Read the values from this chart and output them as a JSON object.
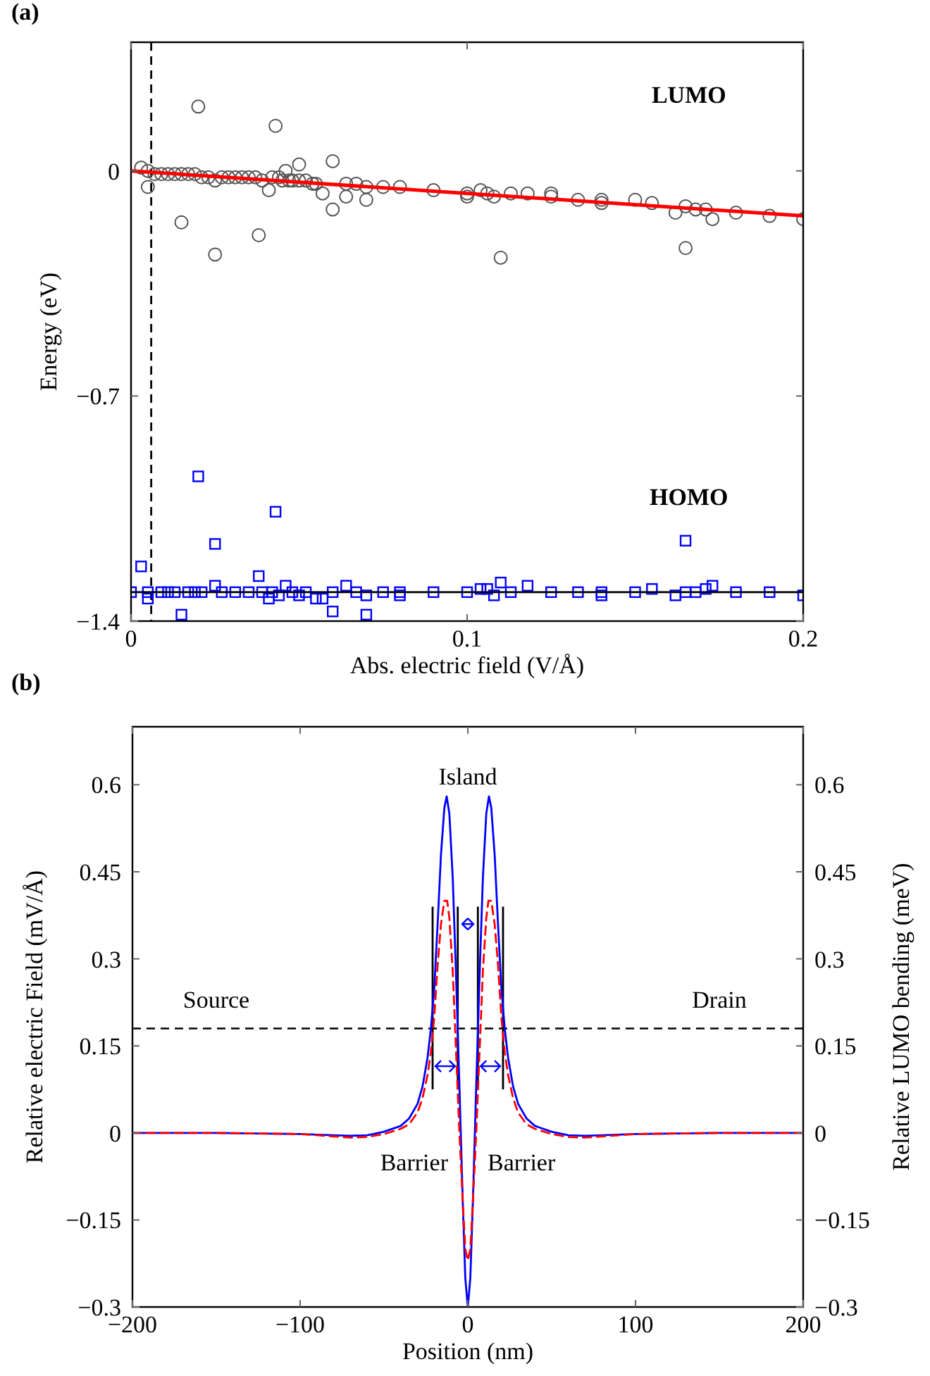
{
  "chart_data": [
    {
      "type": "scatter",
      "title": "(a)",
      "xlabel": "Abs. electric field (V/Å)",
      "ylabel": "Energy (eV)",
      "xlim": [
        0,
        0.2
      ],
      "xticks": [
        0,
        0.1,
        0.2
      ],
      "ylim": [
        -1.4,
        0.4
      ],
      "yticks": [
        {
          "value": -1.4,
          "label": "−1.4"
        },
        {
          "value": -0.7,
          "label": "−0.7"
        },
        0
      ],
      "grid": false,
      "series": [
        {
          "marker": "circle",
          "color": "#555555",
          "x": [
            0.003,
            0.005,
            0.005,
            0.007,
            0.009,
            0.011,
            0.013,
            0.015,
            0.015,
            0.017,
            0.019,
            0.02,
            0.021,
            0.023,
            0.025,
            0.025,
            0.027,
            0.029,
            0.031,
            0.033,
            0.035,
            0.037,
            0.038,
            0.039,
            0.041,
            0.042,
            0.043,
            0.044,
            0.045,
            0.046,
            0.047,
            0.048,
            0.05,
            0.05,
            0.052,
            0.054,
            0.055,
            0.057,
            0.06,
            0.06,
            0.064,
            0.064,
            0.067,
            0.07,
            0.07,
            0.075,
            0.08,
            0.09,
            0.1,
            0.1,
            0.104,
            0.106,
            0.108,
            0.11,
            0.113,
            0.118,
            0.125,
            0.125,
            0.133,
            0.14,
            0.14,
            0.15,
            0.155,
            0.162,
            0.165,
            0.165,
            0.168,
            0.171,
            0.173,
            0.18,
            0.19,
            0.2
          ],
          "values": [
            0.01,
            0.0,
            -0.05,
            -0.01,
            -0.01,
            -0.01,
            -0.01,
            -0.01,
            -0.16,
            -0.01,
            -0.01,
            0.2,
            -0.02,
            -0.02,
            -0.03,
            -0.26,
            -0.02,
            -0.02,
            -0.02,
            -0.02,
            -0.02,
            -0.02,
            -0.2,
            -0.03,
            -0.06,
            -0.02,
            0.14,
            -0.02,
            -0.03,
            0.0,
            -0.03,
            -0.03,
            0.02,
            -0.03,
            -0.03,
            -0.04,
            -0.04,
            -0.07,
            0.03,
            -0.12,
            -0.04,
            -0.08,
            -0.04,
            -0.05,
            -0.09,
            -0.05,
            -0.05,
            -0.06,
            -0.08,
            -0.07,
            -0.06,
            -0.07,
            -0.08,
            -0.27,
            -0.07,
            -0.07,
            -0.07,
            -0.08,
            -0.09,
            -0.09,
            -0.1,
            -0.09,
            -0.1,
            -0.13,
            -0.11,
            -0.24,
            -0.12,
            -0.12,
            -0.15,
            -0.13,
            -0.14,
            -0.15
          ]
        },
        {
          "marker": "square",
          "color": "#0000ff",
          "x": [
            0.0,
            0.003,
            0.005,
            0.005,
            0.009,
            0.011,
            0.013,
            0.015,
            0.017,
            0.019,
            0.02,
            0.021,
            0.025,
            0.025,
            0.027,
            0.031,
            0.035,
            0.038,
            0.039,
            0.041,
            0.042,
            0.043,
            0.044,
            0.046,
            0.048,
            0.05,
            0.052,
            0.055,
            0.057,
            0.06,
            0.06,
            0.064,
            0.067,
            0.07,
            0.07,
            0.075,
            0.08,
            0.08,
            0.09,
            0.1,
            0.104,
            0.106,
            0.108,
            0.11,
            0.113,
            0.118,
            0.125,
            0.133,
            0.14,
            0.14,
            0.15,
            0.155,
            0.162,
            0.165,
            0.165,
            0.168,
            0.171,
            0.173,
            0.18,
            0.19,
            0.2
          ],
          "values": [
            -1.31,
            -1.23,
            -1.31,
            -1.33,
            -1.31,
            -1.31,
            -1.31,
            -1.38,
            -1.31,
            -1.31,
            -0.95,
            -1.31,
            -1.29,
            -1.16,
            -1.31,
            -1.31,
            -1.31,
            -1.26,
            -1.31,
            -1.33,
            -1.31,
            -1.06,
            -1.32,
            -1.29,
            -1.31,
            -1.32,
            -1.31,
            -1.33,
            -1.33,
            -1.37,
            -1.31,
            -1.29,
            -1.31,
            -1.38,
            -1.32,
            -1.31,
            -1.31,
            -1.32,
            -1.31,
            -1.31,
            -1.3,
            -1.3,
            -1.32,
            -1.28,
            -1.31,
            -1.29,
            -1.31,
            -1.31,
            -1.31,
            -1.32,
            -1.31,
            -1.3,
            -1.32,
            -1.15,
            -1.31,
            -1.31,
            -1.3,
            -1.29,
            -1.31,
            -1.31,
            -1.32
          ]
        },
        {
          "type": "line",
          "color": "#ff0000",
          "x": [
            0,
            0.2
          ],
          "values": [
            0.0,
            -0.14
          ]
        },
        {
          "type": "line",
          "color": "#000000",
          "x": [
            0,
            0.2
          ],
          "values": [
            -1.31,
            -1.31
          ]
        }
      ],
      "ref_lines": [
        {
          "axis": "x",
          "value": 0.006,
          "color": "#000000",
          "line_style": "dashed"
        }
      ],
      "annotations": [
        "LUMO",
        "HOMO"
      ]
    },
    {
      "type": "line",
      "title": "(b)",
      "xlabel": "Position (nm)",
      "ylabel": "Relative electric Field (mV/Å)",
      "y2label": "Relative LUMO bending (meV)",
      "xlim": [
        -200,
        200
      ],
      "xticks": [
        {
          "value": -200,
          "label": "−200"
        },
        {
          "value": -100,
          "label": "−100"
        },
        0,
        100,
        200
      ],
      "ylim": [
        -0.3,
        0.7
      ],
      "yticks": [
        {
          "value": -0.3,
          "label": "−0.3"
        },
        {
          "value": -0.15,
          "label": "−0.15"
        },
        0,
        0.15,
        0.3,
        0.45,
        0.6
      ],
      "y2lim": [
        -0.3,
        0.7
      ],
      "y2ticks": [
        {
          "value": -0.3,
          "label": "−0.3"
        },
        {
          "value": -0.15,
          "label": "−0.15"
        },
        0,
        0.15,
        0.3,
        0.45,
        0.6
      ],
      "grid": false,
      "series": [
        {
          "color": "#0000ff",
          "line_style": "solid",
          "x": [
            -200,
            -150,
            -100,
            -80,
            -70,
            -60,
            -50,
            -40,
            -35,
            -30,
            -27,
            -24,
            -22,
            -20,
            -18,
            -16,
            -14,
            -12.6,
            -11,
            -9,
            -7,
            -5,
            -3,
            -1.5,
            0,
            1.5,
            3,
            5,
            7,
            9,
            11,
            12.6,
            14,
            16,
            18,
            20,
            22,
            24,
            27,
            30,
            35,
            40,
            50,
            60,
            70,
            80,
            100,
            150,
            200
          ],
          "values": [
            0,
            0,
            -0.002,
            -0.004,
            -0.005,
            -0.004,
            0.002,
            0.012,
            0.025,
            0.05,
            0.08,
            0.13,
            0.18,
            0.25,
            0.36,
            0.48,
            0.56,
            0.58,
            0.55,
            0.44,
            0.27,
            0.08,
            -0.12,
            -0.25,
            -0.3,
            -0.25,
            -0.12,
            0.08,
            0.27,
            0.44,
            0.55,
            0.58,
            0.56,
            0.48,
            0.36,
            0.25,
            0.18,
            0.13,
            0.08,
            0.05,
            0.025,
            0.012,
            0.002,
            -0.004,
            -0.005,
            -0.004,
            -0.002,
            0,
            0
          ]
        },
        {
          "color": "#ff0000",
          "line_style": "dashed",
          "x": [
            -200,
            -150,
            -100,
            -80,
            -70,
            -60,
            -50,
            -40,
            -35,
            -30,
            -27,
            -24,
            -22,
            -20,
            -18,
            -16,
            -14,
            -12.3,
            -11,
            -9,
            -7,
            -5,
            -3,
            -1.5,
            0,
            1.5,
            3,
            5,
            7,
            9,
            11,
            12.3,
            14,
            16,
            18,
            20,
            22,
            24,
            27,
            30,
            35,
            40,
            50,
            60,
            70,
            80,
            100,
            150,
            200
          ],
          "values": [
            0,
            0,
            -0.002,
            -0.006,
            -0.008,
            -0.007,
            -0.002,
            0.007,
            0.015,
            0.035,
            0.06,
            0.1,
            0.14,
            0.2,
            0.29,
            0.36,
            0.4,
            0.4,
            0.37,
            0.28,
            0.14,
            0.0,
            -0.12,
            -0.2,
            -0.22,
            -0.2,
            -0.12,
            0.0,
            0.14,
            0.28,
            0.37,
            0.4,
            0.4,
            0.36,
            0.29,
            0.2,
            0.14,
            0.1,
            0.06,
            0.035,
            0.015,
            0.007,
            -0.002,
            -0.007,
            -0.008,
            -0.006,
            -0.002,
            0,
            0
          ]
        }
      ],
      "ref_lines": [
        {
          "axis": "y",
          "value": 0.18,
          "color": "#000000",
          "line_style": "dashed"
        },
        {
          "axis": "x",
          "value": -21,
          "color": "#000000",
          "line_style": "solid"
        },
        {
          "axis": "x",
          "value": -6,
          "color": "#000000",
          "line_style": "solid"
        },
        {
          "axis": "x",
          "value": 6,
          "color": "#000000",
          "line_style": "solid"
        },
        {
          "axis": "x",
          "value": 21,
          "color": "#000000",
          "line_style": "solid"
        }
      ],
      "annotations": [
        "Island",
        "Source",
        "Drain",
        "Barrier",
        "Barrier"
      ]
    }
  ]
}
